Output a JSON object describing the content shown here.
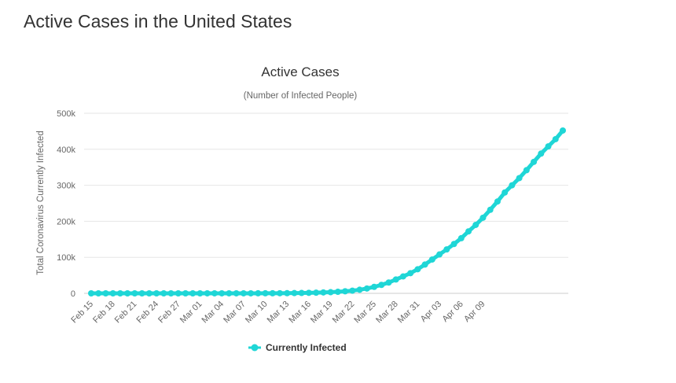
{
  "page": {
    "heading": "Active Cases in the United States"
  },
  "chart_data": {
    "type": "line",
    "title": "Active Cases",
    "subtitle": "(Number of Infected People)",
    "ylabel": "Total Coronavirus Currently Infected",
    "xlabel": "",
    "ylim": [
      0,
      500000
    ],
    "yticks": [
      {
        "value": 0,
        "label": "0"
      },
      {
        "value": 100000,
        "label": "100k"
      },
      {
        "value": 200000,
        "label": "200k"
      },
      {
        "value": 300000,
        "label": "300k"
      },
      {
        "value": 400000,
        "label": "400k"
      },
      {
        "value": 500000,
        "label": "500k"
      }
    ],
    "grid": true,
    "legend_position": "bottom-center",
    "color": "#1fd6d6",
    "x_tick_labels": [
      "Feb 15",
      "Feb 18",
      "Feb 21",
      "Feb 24",
      "Feb 27",
      "Mar 01",
      "Mar 04",
      "Mar 07",
      "Mar 10",
      "Mar 13",
      "Mar 16",
      "Mar 19",
      "Mar 22",
      "Mar 25",
      "Mar 28",
      "Mar 31",
      "Apr 03",
      "Apr 06",
      "Apr 09"
    ],
    "x_tick_every": 3,
    "series": [
      {
        "name": "Currently Infected",
        "values": [
          12,
          12,
          12,
          12,
          12,
          12,
          12,
          12,
          12,
          12,
          12,
          12,
          12,
          12,
          14,
          25,
          40,
          55,
          66,
          72,
          80,
          90,
          110,
          140,
          180,
          240,
          350,
          500,
          700,
          1000,
          1400,
          1800,
          2500,
          3200,
          4300,
          5700,
          7500,
          10000,
          13500,
          18000,
          23500,
          30000,
          38500,
          47000,
          56000,
          67000,
          80000,
          94000,
          108000,
          122000,
          137000,
          153000,
          172000,
          190000,
          210000,
          232000,
          255000,
          280000,
          300000,
          320000,
          342000,
          365000,
          388000,
          408000,
          428000,
          452000
        ]
      }
    ]
  }
}
